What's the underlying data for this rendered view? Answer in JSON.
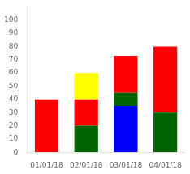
{
  "chart_data": {
    "type": "bar",
    "stacked": true,
    "categories": [
      "01/01/18",
      "02/01/18",
      "03/01/18",
      "04/01/18"
    ],
    "series": [
      {
        "color": "#0000ff",
        "values": [
          0,
          0,
          35,
          0
        ]
      },
      {
        "color": "#006400",
        "values": [
          0,
          20,
          10,
          30
        ]
      },
      {
        "color": "#ff0000",
        "values": [
          40,
          20,
          28,
          50
        ]
      },
      {
        "color": "#ffff00",
        "values": [
          0,
          20,
          0,
          0
        ]
      }
    ],
    "ylim": [
      0,
      110
    ],
    "yticks": [
      0,
      10,
      20,
      30,
      40,
      50,
      60,
      70,
      80,
      90,
      100
    ],
    "grid": false
  }
}
